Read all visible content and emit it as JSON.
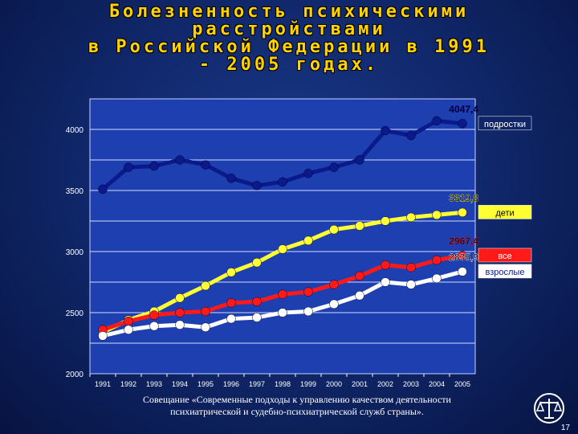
{
  "chart_data": {
    "type": "line",
    "title_lines": [
      "Болезненность психическими",
      "расстройствами",
      "в Российской Федерации в 1991",
      "- 2005 годах."
    ],
    "categories": [
      "1991",
      "1992",
      "1993",
      "1994",
      "1995",
      "1996",
      "1997",
      "1998",
      "1999",
      "2000",
      "2001",
      "2002",
      "2003",
      "2004",
      "2005"
    ],
    "ylim": [
      2000,
      4250
    ],
    "yticks": [
      2000,
      2500,
      3000,
      3500,
      4000
    ],
    "grid": true,
    "series": [
      {
        "name": "подростки",
        "color": "#0a1a8a",
        "label_bg": "#0f2566",
        "label_color": "#ffffff",
        "end_value": "4047,4",
        "values": [
          3510,
          3690,
          3700,
          3750,
          3710,
          3600,
          3540,
          3570,
          3640,
          3690,
          3750,
          3990,
          3950,
          4070,
          4047.4
        ]
      },
      {
        "name": "дети",
        "color": "#ffff33",
        "label_bg": "#ffff33",
        "label_color": "#000000",
        "end_value": "3319,8",
        "values": [
          2340,
          2440,
          2510,
          2620,
          2720,
          2830,
          2910,
          3020,
          3090,
          3180,
          3210,
          3250,
          3280,
          3300,
          3319.8
        ]
      },
      {
        "name": "все",
        "color": "#ff1a1a",
        "label_bg": "#ff1a1a",
        "label_color": "#ffffff",
        "end_value": "2967,4",
        "values": [
          2360,
          2430,
          2480,
          2500,
          2510,
          2580,
          2590,
          2650,
          2670,
          2730,
          2800,
          2890,
          2870,
          2930,
          2967.4
        ]
      },
      {
        "name": "взрослые",
        "color": "#ffffff",
        "label_bg": "#ffffff",
        "label_color": "#0a1a8a",
        "end_value": "2835,9",
        "values": [
          2310,
          2360,
          2390,
          2400,
          2380,
          2450,
          2460,
          2500,
          2510,
          2570,
          2640,
          2750,
          2730,
          2780,
          2835.9
        ]
      }
    ]
  },
  "footer": {
    "line1": "Совещание «Современные подходы к управлению качеством деятельности",
    "line2": "психиатрической и судебно-психиатрической служб страны»."
  },
  "page_number": "17"
}
